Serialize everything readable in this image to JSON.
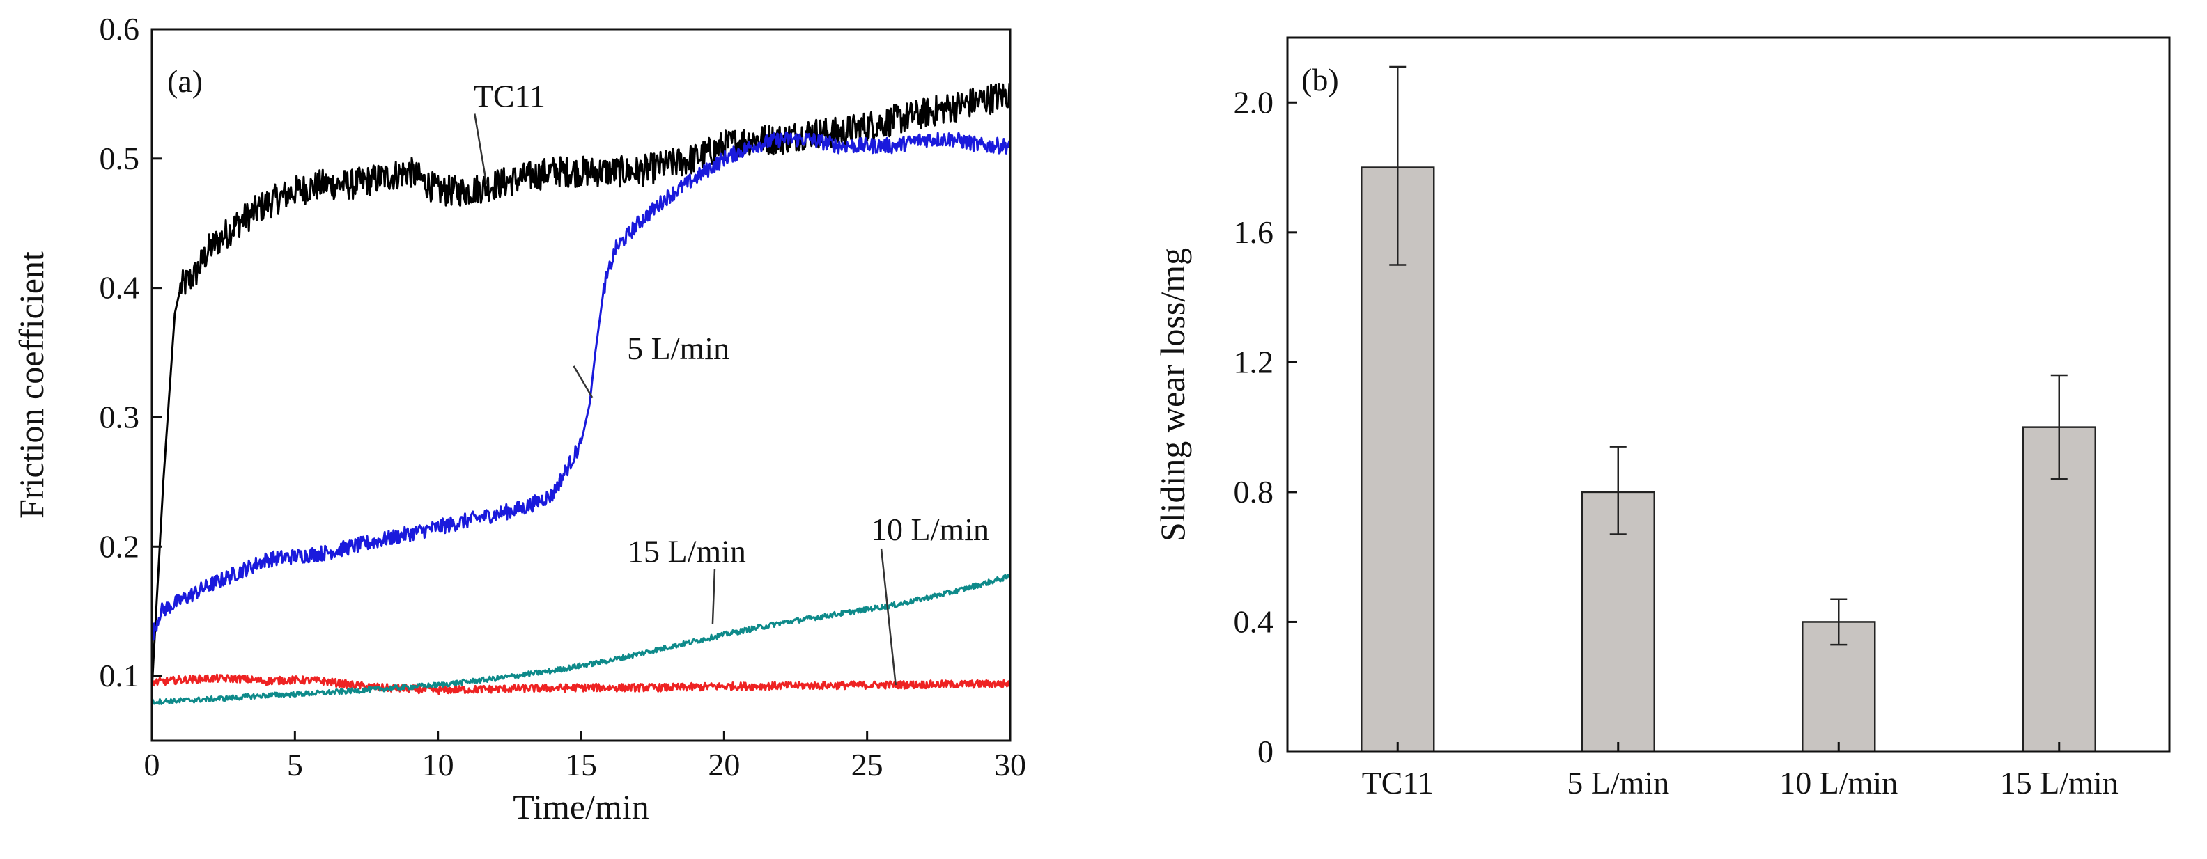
{
  "chart_data": [
    {
      "panel_label": "(a)",
      "type": "line",
      "xlabel": "Time/min",
      "ylabel": "Friction coefficient",
      "xlim": [
        0,
        30
      ],
      "ylim": [
        0.05,
        0.6
      ],
      "x_ticks": [
        "0",
        "5",
        "10",
        "15",
        "20",
        "25",
        "30"
      ],
      "x_tick_values": [
        0,
        5,
        10,
        15,
        20,
        25,
        30
      ],
      "y_ticks": [
        "0.1",
        "0.2",
        "0.3",
        "0.4",
        "0.5",
        "0.6"
      ],
      "y_tick_values": [
        0.1,
        0.2,
        0.3,
        0.4,
        0.5,
        0.6
      ],
      "series": [
        {
          "name": "TC11",
          "color": "#000000",
          "noise": 0.012,
          "x": [
            0,
            0.4,
            0.8,
            1.0,
            1.5,
            2,
            3,
            4,
            5,
            6,
            7,
            8,
            9,
            10,
            11,
            12,
            13,
            14,
            15,
            16,
            17,
            18,
            19,
            20,
            21,
            22,
            23,
            24,
            25,
            26,
            27,
            28,
            29,
            30
          ],
          "y": [
            0.09,
            0.25,
            0.38,
            0.4,
            0.41,
            0.43,
            0.45,
            0.465,
            0.475,
            0.48,
            0.48,
            0.485,
            0.49,
            0.475,
            0.475,
            0.48,
            0.485,
            0.49,
            0.49,
            0.49,
            0.49,
            0.495,
            0.5,
            0.51,
            0.515,
            0.515,
            0.52,
            0.52,
            0.525,
            0.53,
            0.535,
            0.54,
            0.545,
            0.55
          ]
        },
        {
          "name": "5 L/min",
          "color": "#1a1adc",
          "noise": 0.006,
          "x": [
            0,
            0.3,
            2,
            4,
            6,
            8,
            10,
            12,
            13,
            14,
            14.5,
            15,
            15.3,
            15.5,
            15.8,
            16.2,
            17,
            18,
            19,
            20,
            21,
            22,
            23,
            24,
            25,
            26,
            27,
            28,
            29,
            30
          ],
          "y": [
            0.13,
            0.15,
            0.17,
            0.19,
            0.195,
            0.205,
            0.215,
            0.225,
            0.23,
            0.24,
            0.26,
            0.28,
            0.31,
            0.35,
            0.4,
            0.43,
            0.45,
            0.47,
            0.485,
            0.5,
            0.51,
            0.515,
            0.515,
            0.51,
            0.51,
            0.51,
            0.515,
            0.515,
            0.51,
            0.51
          ]
        },
        {
          "name": "10 L/min",
          "color": "#ee2222",
          "noise": 0.003,
          "x": [
            0,
            1,
            2,
            3,
            4,
            5,
            6,
            7,
            8,
            10,
            12,
            15,
            18,
            20,
            25,
            30
          ],
          "y": [
            0.095,
            0.097,
            0.098,
            0.098,
            0.096,
            0.097,
            0.096,
            0.093,
            0.091,
            0.089,
            0.09,
            0.091,
            0.091,
            0.092,
            0.093,
            0.094
          ]
        },
        {
          "name": "15 L/min",
          "color": "#0e8a8a",
          "noise": 0.002,
          "x": [
            0,
            2,
            4,
            6,
            8,
            10,
            12,
            14,
            16,
            18,
            20,
            22,
            24,
            26,
            28,
            30
          ],
          "y": [
            0.08,
            0.082,
            0.085,
            0.087,
            0.09,
            0.093,
            0.098,
            0.104,
            0.112,
            0.122,
            0.132,
            0.141,
            0.148,
            0.155,
            0.165,
            0.177
          ]
        }
      ],
      "annotations": [
        {
          "text": "TC11",
          "x": 12.5,
          "y": 0.54,
          "arrow_to": [
            11.7,
            0.48
          ]
        },
        {
          "text": "5 L/min",
          "x": 18.4,
          "y": 0.345,
          "arrow_to": [
            15.4,
            0.315
          ]
        },
        {
          "text": "15 L/min",
          "x": 18.7,
          "y": 0.188,
          "arrow_to": [
            19.6,
            0.14
          ]
        },
        {
          "text": "10 L/min",
          "x": 27.2,
          "y": 0.205,
          "arrow_to": [
            26,
            0.093
          ]
        }
      ]
    },
    {
      "panel_label": "(b)",
      "type": "bar",
      "xlabel": "",
      "ylabel": "Sliding wear loss/mg",
      "ylim": [
        0,
        2.2
      ],
      "y_ticks": [
        "0",
        "0.4",
        "0.8",
        "1.2",
        "1.6",
        "2.0"
      ],
      "y_tick_values": [
        0,
        0.4,
        0.8,
        1.2,
        1.6,
        2.0
      ],
      "categories": [
        "TC11",
        "5 L/min",
        "10 L/min",
        "15 L/min"
      ],
      "values": [
        1.8,
        0.8,
        0.4,
        1.0
      ],
      "error_low": [
        1.5,
        0.67,
        0.33,
        0.84
      ],
      "error_high": [
        2.11,
        0.94,
        0.47,
        1.16
      ],
      "bar_color": "#c8c4c1"
    }
  ]
}
